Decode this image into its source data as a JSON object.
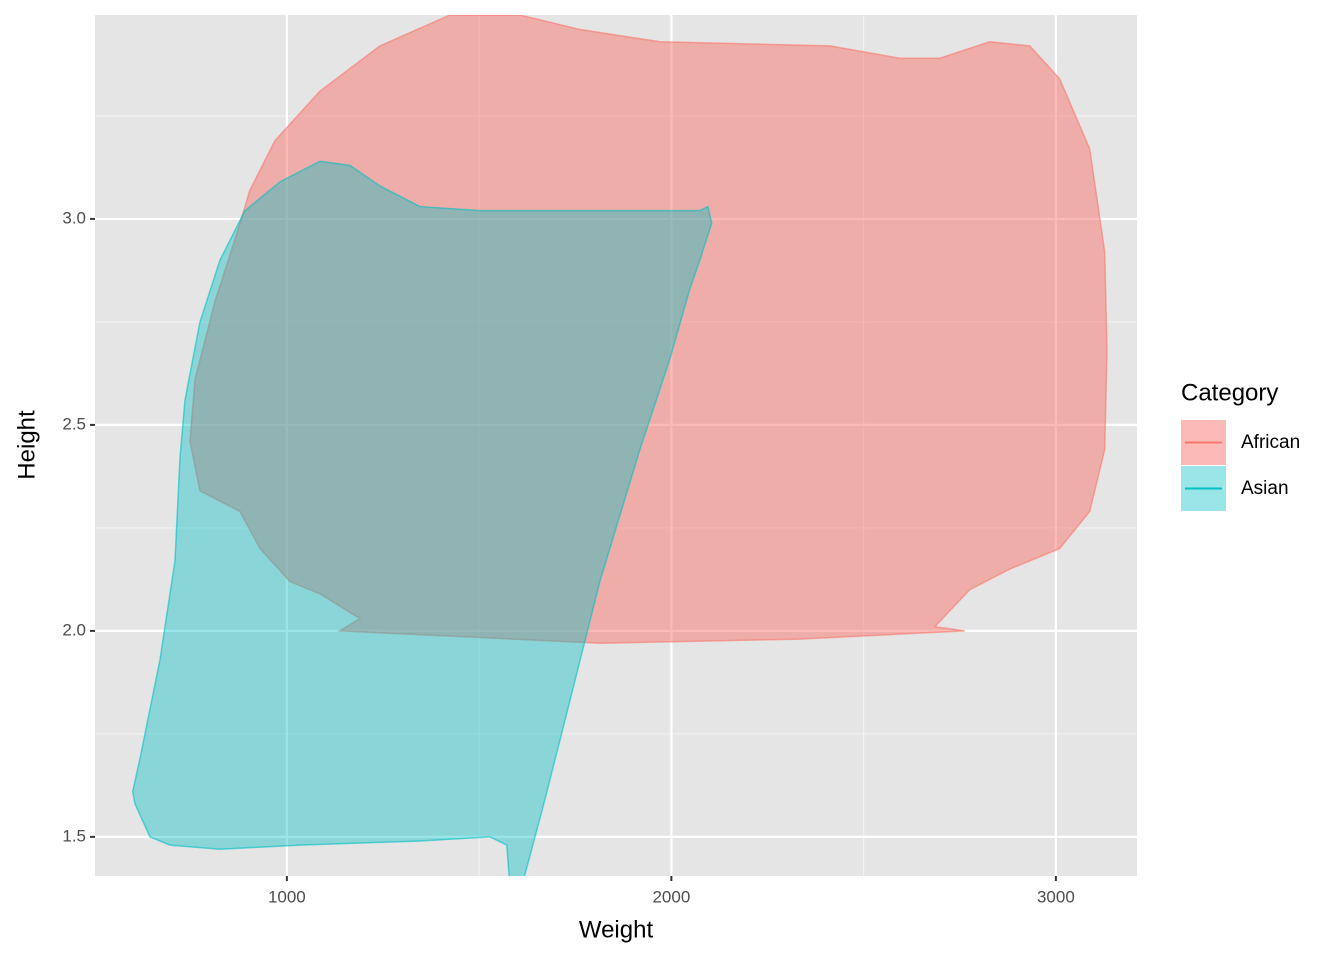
{
  "chart_data": {
    "type": "polygon",
    "x_label": "Weight",
    "y_label": "Height",
    "legend_title": "Category",
    "legend_position": "right",
    "xlim": [
      501,
      3211
    ],
    "ylim": [
      1.405,
      3.495
    ],
    "xticks": [
      1000,
      2000,
      3000
    ],
    "yticks": [
      1.5,
      {
        "value": 2,
        "label": "2.0"
      },
      2.5,
      {
        "value": 3,
        "label": "3.0"
      }
    ],
    "x_minor_ticks": [
      1500,
      2500
    ],
    "y_minor_ticks": [
      1.75,
      2.25,
      2.75,
      3.25
    ],
    "grid": true,
    "series": [
      {
        "name": "African",
        "color": "#F8766D",
        "x": [
          904,
          969,
          1086,
          1242,
          1424,
          1606,
          1762,
          1970,
          2412,
          2594,
          2698,
          2828,
          2932,
          3010,
          3088,
          3127,
          3133,
          3127,
          3088,
          3010,
          2880,
          2776,
          2685,
          2763,
          2334,
          1814,
          1138,
          1190,
          1086,
          1008,
          930,
          878,
          774,
          748,
          761,
          813,
          865
        ],
        "y": [
          3.07,
          3.19,
          3.31,
          3.42,
          3.495,
          3.495,
          3.46,
          3.43,
          3.42,
          3.39,
          3.39,
          3.43,
          3.42,
          3.34,
          3.17,
          2.92,
          2.68,
          2.44,
          2.29,
          2.2,
          2.15,
          2.1,
          2.01,
          2.0,
          1.98,
          1.97,
          2.0,
          2.03,
          2.09,
          2.12,
          2.2,
          2.29,
          2.34,
          2.46,
          2.61,
          2.8,
          2.95
        ]
      },
      {
        "name": "Asian",
        "color": "#00BFC4",
        "x": [
          891,
          982,
          1086,
          1164,
          1242,
          1346,
          1502,
          2074,
          2095,
          2105,
          2074,
          2048,
          1996,
          1918,
          1814,
          1736,
          1671,
          1611,
          1580,
          1572,
          1528,
          1346,
          1034,
          826,
          696,
          644,
          605,
          599,
          618,
          670,
          709,
          722,
          735,
          774,
          826
        ],
        "y": [
          3.02,
          3.09,
          3.14,
          3.13,
          3.08,
          3.03,
          3.02,
          3.02,
          3.03,
          2.99,
          2.9,
          2.83,
          2.66,
          2.44,
          2.12,
          1.83,
          1.59,
          1.38,
          1.38,
          1.48,
          1.5,
          1.49,
          1.48,
          1.47,
          1.48,
          1.5,
          1.58,
          1.61,
          1.69,
          1.93,
          2.17,
          2.42,
          2.56,
          2.75,
          2.9
        ]
      }
    ]
  }
}
